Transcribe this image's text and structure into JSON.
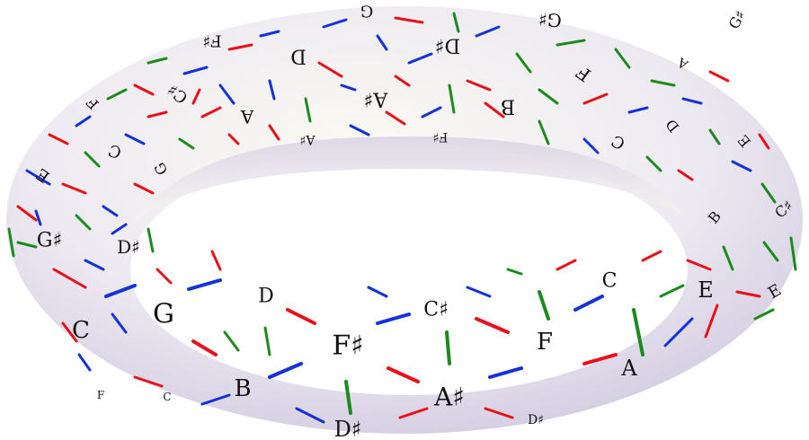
{
  "colors": {
    "surface_light": "#fbfaf2",
    "surface_mid": "#eeeaf2",
    "surface_shadow": "#cdc6de",
    "red_edge": "#e8101a",
    "blue_edge": "#1432d8",
    "green_edge": "#1c8a1c",
    "label_ink": "#111111"
  },
  "note_labels": [
    {
      "text": "G",
      "color": "red"
    },
    {
      "text": "F♯",
      "color": "red"
    },
    {
      "text": "D",
      "color": "red"
    },
    {
      "text": "D♯",
      "color": "red"
    },
    {
      "text": "G♯",
      "color": "red"
    },
    {
      "text": "C♯",
      "color": "red"
    },
    {
      "text": "A",
      "color": "red"
    },
    {
      "text": "A♯",
      "color": "red"
    },
    {
      "text": "B",
      "color": "red"
    },
    {
      "text": "E",
      "color": "red"
    },
    {
      "text": "F",
      "color": "red"
    },
    {
      "text": "C",
      "color": "red"
    },
    {
      "text": "C",
      "color": "red"
    },
    {
      "text": "F",
      "color": "red"
    },
    {
      "text": "E",
      "color": "red"
    },
    {
      "text": "D♯",
      "color": "red"
    },
    {
      "text": "G♯",
      "color": "red"
    },
    {
      "text": "D",
      "color": "red"
    },
    {
      "text": "G",
      "color": "red"
    },
    {
      "text": "C",
      "color": "red"
    },
    {
      "text": "B",
      "color": "red"
    },
    {
      "text": "F♯",
      "color": "red"
    },
    {
      "text": "A♯",
      "color": "red"
    },
    {
      "text": "C♯",
      "color": "red"
    },
    {
      "text": "F",
      "color": "red"
    },
    {
      "text": "A",
      "color": "red"
    },
    {
      "text": "E",
      "color": "red"
    },
    {
      "text": "G♯",
      "color": "red"
    },
    {
      "text": "D♯",
      "color": "red"
    },
    {
      "text": "B",
      "color": "red"
    },
    {
      "text": "C",
      "color": "red"
    },
    {
      "text": "G",
      "color": "red"
    },
    {
      "text": "D",
      "color": "red"
    },
    {
      "text": "F♯",
      "color": "red"
    },
    {
      "text": "A♯",
      "color": "red"
    },
    {
      "text": "C♯",
      "color": "red"
    },
    {
      "text": "E",
      "color": "red"
    },
    {
      "text": "A",
      "color": "red"
    },
    {
      "text": "F",
      "color": "red"
    },
    {
      "text": "D♯",
      "color": "red"
    },
    {
      "text": "C",
      "color": "red"
    }
  ]
}
